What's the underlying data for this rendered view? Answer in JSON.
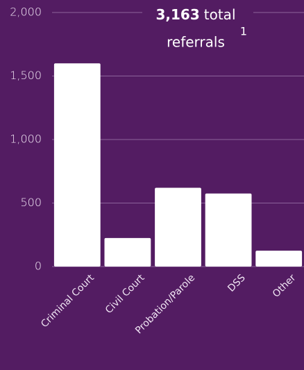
{
  "chart_data": {
    "type": "bar",
    "annotation": {
      "value": "3,163",
      "text": [
        "total",
        "referrals"
      ],
      "footnote": "1"
    },
    "categories": [
      "Criminal Court",
      "Civil Court",
      "Probation/Parole",
      "DSS",
      "Other"
    ],
    "values": [
      1600,
      225,
      620,
      575,
      125
    ],
    "color": "#ffffff",
    "ylim": [
      0,
      2000
    ],
    "yticks": [
      0,
      500,
      {
        "value": 1000,
        "label": "1,000"
      },
      {
        "value": 1500,
        "label": "1,500"
      },
      {
        "value": 2000,
        "label": "2,000"
      }
    ],
    "grid": true
  }
}
